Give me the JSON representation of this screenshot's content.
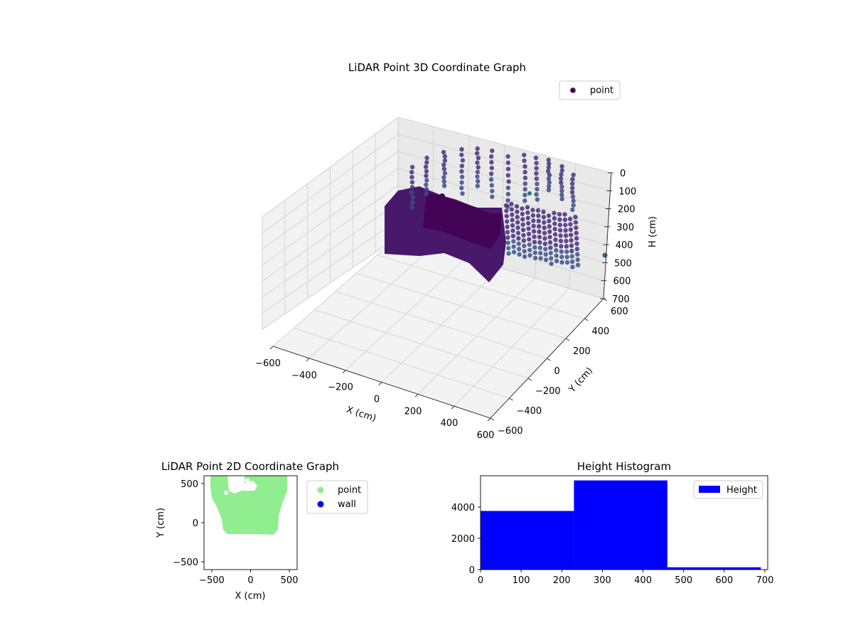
{
  "colors": {
    "viridis_dark": "#440154",
    "viridis_teal": "#3b8bc2",
    "point_2d": "#90ee90",
    "wall": "#0000ff",
    "histogram": "#0000ff",
    "pane": "#f2f2f2",
    "grid": "#c8c8c8"
  },
  "chart_data": [
    {
      "type": "scatter",
      "projection": "3d",
      "title": "LiDAR Point 3D Coordinate Graph",
      "xlabel": "X (cm)",
      "ylabel": "Y (cm)",
      "zlabel": "H (cm)",
      "x_ticks": [
        "−600",
        "−400",
        "−200",
        "0",
        "200",
        "400",
        "600"
      ],
      "y_ticks": [
        "−600",
        "−400",
        "−200",
        "0",
        "200",
        "400",
        "600"
      ],
      "z_ticks": [
        "0",
        "100",
        "200",
        "300",
        "400",
        "500",
        "600",
        "700"
      ],
      "xlim": [
        -600,
        600
      ],
      "ylim": [
        -600,
        600
      ],
      "zlim": [
        0,
        700
      ],
      "z_inverted": true,
      "legend": {
        "entries": [
          "point"
        ],
        "placement": "top-right"
      },
      "colormap": "viridis",
      "grid": true
    },
    {
      "type": "scatter",
      "title": "LiDAR Point 2D Coordinate Graph",
      "xlabel": "X (cm)",
      "ylabel": "Y (cm)",
      "x_ticks": [
        "−500",
        "0",
        "500"
      ],
      "y_ticks": [
        "500",
        "0",
        "−500"
      ],
      "xlim": [
        -600,
        600
      ],
      "ylim": [
        -600,
        600
      ],
      "legend": {
        "entries": [
          "point",
          "wall"
        ],
        "placement": "outside-right"
      },
      "series": [
        {
          "name": "point",
          "color": "#90ee90"
        },
        {
          "name": "wall",
          "color": "#0000ff"
        }
      ]
    },
    {
      "type": "bar",
      "title": "Height Histogram",
      "bins": [
        {
          "start": 0,
          "end": 230,
          "count": 3750
        },
        {
          "start": 230,
          "end": 460,
          "count": 5700
        },
        {
          "start": 460,
          "end": 690,
          "count": 150
        }
      ],
      "x_ticks": [
        "0",
        "100",
        "200",
        "300",
        "400",
        "500",
        "600",
        "700"
      ],
      "y_ticks": [
        "0",
        "2000",
        "4000"
      ],
      "xlim": [
        0,
        707
      ],
      "ylim": [
        0,
        6000
      ],
      "legend": {
        "entries": [
          "Height"
        ],
        "placement": "top-right"
      },
      "series": [
        {
          "name": "Height",
          "color": "#0000ff"
        }
      ]
    }
  ]
}
